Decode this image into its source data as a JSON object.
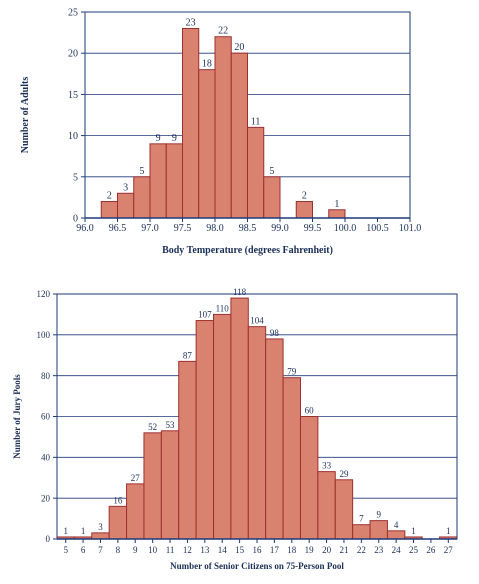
{
  "colors": {
    "bar_fill": "#d9826f",
    "bar_stroke": "#9e2f2f",
    "axis": "#1e3a7a",
    "grid": "#1e3a7a",
    "text": "#1a2f57"
  },
  "chart_data": [
    {
      "type": "bar",
      "title": "",
      "xlabel": "Body Temperature (degrees Fahrenheit)",
      "ylabel": "Number of Adults",
      "xlim": [
        96.0,
        101.0
      ],
      "ylim": [
        0,
        25
      ],
      "bin_width": 0.25,
      "x_ticks": [
        "96.0",
        "96.5",
        "97.0",
        "97.5",
        "98.0",
        "98.5",
        "99.0",
        "99.5",
        "100.0",
        "100.5",
        "101.0"
      ],
      "y_ticks": [
        0,
        5,
        10,
        15,
        20,
        25
      ],
      "grid": true,
      "bars": [
        {
          "x": 96.25,
          "value": 2,
          "label": "2"
        },
        {
          "x": 96.5,
          "value": 3,
          "label": "3"
        },
        {
          "x": 96.75,
          "value": 5,
          "label": "5"
        },
        {
          "x": 97.0,
          "value": 9,
          "label": "9"
        },
        {
          "x": 97.25,
          "value": 9,
          "label": "9"
        },
        {
          "x": 97.5,
          "value": 23,
          "label": "23"
        },
        {
          "x": 97.75,
          "value": 18,
          "label": "18"
        },
        {
          "x": 98.0,
          "value": 22,
          "label": "22"
        },
        {
          "x": 98.25,
          "value": 20,
          "label": "20"
        },
        {
          "x": 98.5,
          "value": 11,
          "label": "11"
        },
        {
          "x": 98.75,
          "value": 5,
          "label": "5"
        },
        {
          "x": 99.25,
          "value": 2,
          "label": "2"
        },
        {
          "x": 99.75,
          "value": 1,
          "label": "1"
        }
      ]
    },
    {
      "type": "bar",
      "title": "",
      "xlabel": "Number of Senior Citizens on 75-Person Pool",
      "ylabel": "Number of Jury Pools",
      "xlim": [
        4.5,
        27.5
      ],
      "ylim": [
        0,
        120
      ],
      "bin_width": 1,
      "x_ticks": [
        "5",
        "6",
        "7",
        "8",
        "9",
        "10",
        "11",
        "12",
        "13",
        "14",
        "15",
        "16",
        "17",
        "18",
        "19",
        "20",
        "21",
        "22",
        "23",
        "24",
        "25",
        "26",
        "27"
      ],
      "y_ticks": [
        0,
        20,
        40,
        60,
        80,
        100,
        120
      ],
      "grid": true,
      "bars": [
        {
          "x": 5,
          "value": 1,
          "label": "1"
        },
        {
          "x": 6,
          "value": 1,
          "label": "1"
        },
        {
          "x": 7,
          "value": 3,
          "label": "3"
        },
        {
          "x": 8,
          "value": 16,
          "label": "16"
        },
        {
          "x": 9,
          "value": 27,
          "label": "27"
        },
        {
          "x": 10,
          "value": 52,
          "label": "52"
        },
        {
          "x": 11,
          "value": 53,
          "label": "53"
        },
        {
          "x": 12,
          "value": 87,
          "label": "87"
        },
        {
          "x": 13,
          "value": 107,
          "label": "107"
        },
        {
          "x": 14,
          "value": 110,
          "label": "110"
        },
        {
          "x": 15,
          "value": 118,
          "label": "118"
        },
        {
          "x": 16,
          "value": 104,
          "label": "104"
        },
        {
          "x": 17,
          "value": 98,
          "label": "98"
        },
        {
          "x": 18,
          "value": 79,
          "label": "79"
        },
        {
          "x": 19,
          "value": 60,
          "label": "60"
        },
        {
          "x": 20,
          "value": 33,
          "label": "33"
        },
        {
          "x": 21,
          "value": 29,
          "label": "29"
        },
        {
          "x": 22,
          "value": 7,
          "label": "7"
        },
        {
          "x": 23,
          "value": 9,
          "label": "9"
        },
        {
          "x": 24,
          "value": 4,
          "label": "4"
        },
        {
          "x": 25,
          "value": 1,
          "label": "1"
        },
        {
          "x": 27,
          "value": 1,
          "label": "1"
        }
      ]
    }
  ]
}
